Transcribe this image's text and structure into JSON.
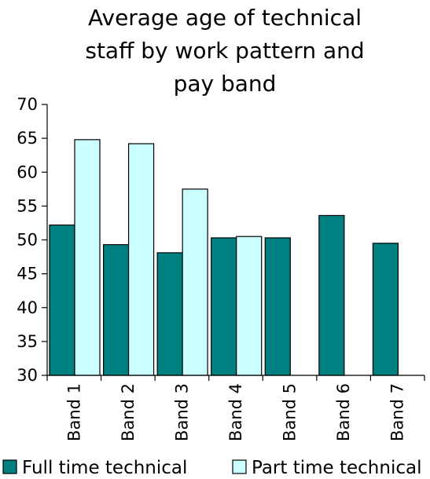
{
  "chart_data": {
    "type": "bar",
    "title_lines": [
      "Average age of technical",
      "staff by work pattern and",
      "pay band"
    ],
    "categories": [
      "Band 1",
      "Band 2",
      "Band 3",
      "Band 4",
      "Band 5",
      "Band 6",
      "Band 7"
    ],
    "series": [
      {
        "name": "Full time technical",
        "color": "#008080",
        "values": [
          52.2,
          49.3,
          48.1,
          50.3,
          50.3,
          53.6,
          49.5
        ]
      },
      {
        "name": "Part time technical",
        "color": "#ccffff",
        "values": [
          64.8,
          64.2,
          57.5,
          50.5,
          null,
          null,
          null
        ]
      }
    ],
    "xlabel": "",
    "ylabel": "",
    "ylim": [
      30,
      70
    ],
    "yticks": [
      30,
      35,
      40,
      45,
      50,
      55,
      60,
      65,
      70
    ],
    "grid": false,
    "legend_position": "bottom"
  }
}
